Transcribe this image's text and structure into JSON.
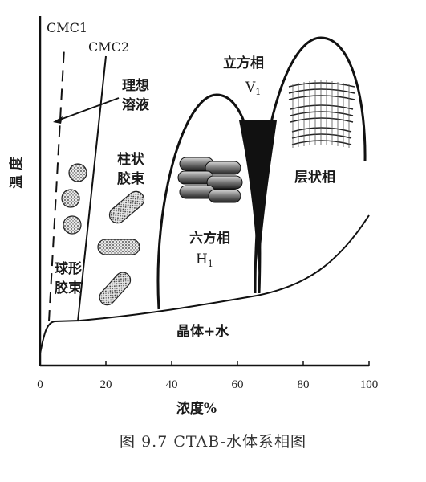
{
  "figure": {
    "caption": "图 9.7   CTAB-水体系相图",
    "x_axis": {
      "label": "浓度%",
      "ticks": [
        "0",
        "20",
        "40",
        "60",
        "80",
        "100"
      ]
    },
    "y_axis": {
      "label": "温 度"
    },
    "labels": {
      "cmc1": "CMC1",
      "cmc2": "CMC2",
      "ideal_line1": "理想",
      "ideal_line2": "溶液",
      "rod_line1": "柱状",
      "rod_line2": "胶束",
      "sphere_line1": "球形",
      "sphere_line2": "胶束",
      "hex_line1": "六方相",
      "hex_line2": "H",
      "hex_sub": "1",
      "cubic_line1": "立方相",
      "cubic_line2": "V",
      "cubic_sub": "1",
      "lamellar": "层状相",
      "crystal": "晶体+水"
    }
  }
}
